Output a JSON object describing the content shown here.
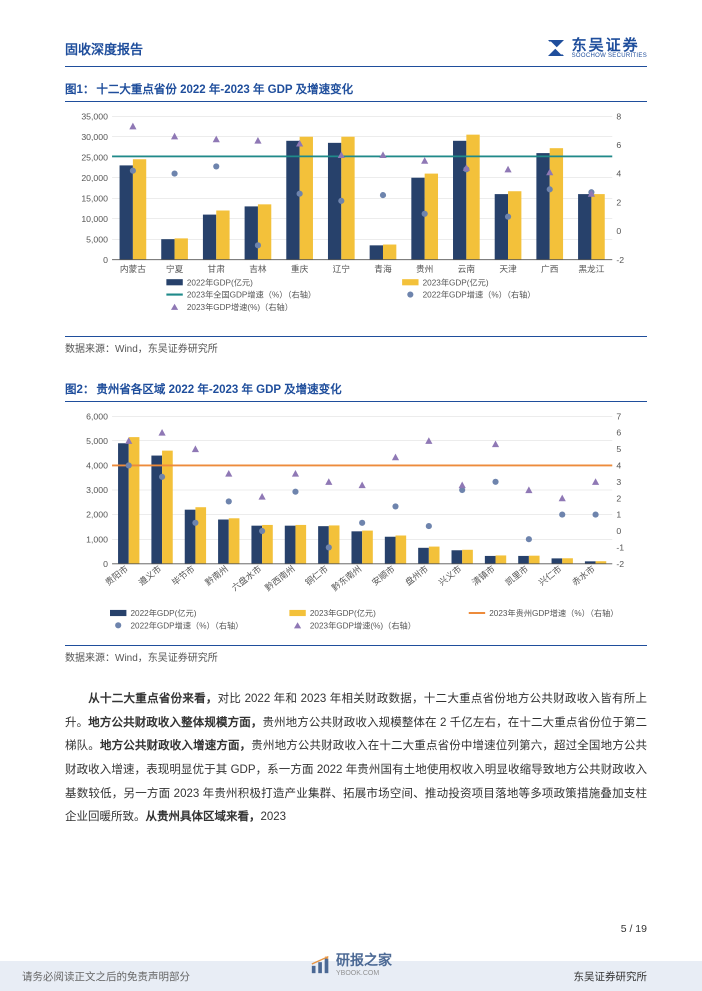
{
  "header": {
    "report_type": "固收深度报告",
    "logo_cn": "东吴证券",
    "logo_en": "SOOCHOW SECURITIES",
    "logo_color": "#1f4e9c"
  },
  "fig1": {
    "label": "图1：",
    "title": "十二大重点省份 2022 年-2023 年 GDP 及增速变化",
    "type": "bar+line+scatter",
    "categories": [
      "内蒙古",
      "宁夏",
      "甘肃",
      "吉林",
      "重庆",
      "辽宁",
      "青海",
      "贵州",
      "云南",
      "天津",
      "广西",
      "黑龙江"
    ],
    "series": {
      "gdp2022": {
        "label": "2022年GDP(亿元)",
        "color": "#27416b",
        "values": [
          23000,
          5000,
          11000,
          13000,
          29000,
          28500,
          3500,
          20000,
          29000,
          16000,
          26000,
          16000
        ]
      },
      "gdp2023": {
        "label": "2023年GDP(亿元)",
        "color": "#f3c13a",
        "values": [
          24500,
          5200,
          12000,
          13500,
          30000,
          30000,
          3700,
          21000,
          30500,
          16700,
          27200,
          16000
        ]
      },
      "nat_growth": {
        "label": "2023年全国GDP增速（%）（右轴）",
        "color": "#1f8a8a",
        "value": 5.2,
        "style": "line"
      },
      "growth2022": {
        "label": "2022年GDP增速（%）（右轴）",
        "color": "#6e84ad",
        "marker": "circle",
        "values": [
          4.2,
          4.0,
          4.5,
          -1.0,
          2.6,
          2.1,
          2.5,
          1.2,
          4.3,
          1.0,
          2.9,
          2.7
        ]
      },
      "growth2023": {
        "label": "2023年GDP增速(%)（右轴）",
        "color": "#8f78b5",
        "marker": "triangle",
        "values": [
          7.3,
          6.6,
          6.4,
          6.3,
          6.1,
          5.3,
          5.3,
          4.9,
          4.4,
          4.3,
          4.1,
          2.6
        ]
      }
    },
    "y_left": {
      "min": 0,
      "max": 35000,
      "step": 5000,
      "label": ""
    },
    "y_right": {
      "min": -2,
      "max": 8,
      "step": 2,
      "label": ""
    },
    "source": "数据来源：Wind，东吴证券研究所",
    "bar_width": 0.32,
    "grid_color": "#d9d9d9",
    "axis_color": "#555",
    "label_fontsize": 8.5
  },
  "fig2": {
    "label": "图2：",
    "title": "贵州省各区域 2022 年-2023 年 GDP 及增速变化",
    "type": "bar+line+scatter",
    "categories": [
      "贵阳市",
      "遵义市",
      "毕节市",
      "黔南州",
      "六盘水市",
      "黔西南州",
      "铜仁市",
      "黔东南州",
      "安顺市",
      "盘州市",
      "兴义市",
      "清镇市",
      "凯里市",
      "兴仁市",
      "赤水市"
    ],
    "series": {
      "gdp2022": {
        "label": "2022年GDP(亿元)",
        "color": "#27416b",
        "values": [
          4900,
          4400,
          2200,
          1800,
          1550,
          1550,
          1530,
          1320,
          1100,
          650,
          550,
          320,
          320,
          220,
          100
        ]
      },
      "gdp2023": {
        "label": "2023年GDP(亿元)",
        "color": "#f3c13a",
        "values": [
          5150,
          4600,
          2300,
          1850,
          1580,
          1580,
          1560,
          1350,
          1150,
          700,
          570,
          340,
          330,
          225,
          105
        ]
      },
      "gz_growth": {
        "label": "2023年贵州GDP增速（%）（右轴）",
        "color": "#ed8b3b",
        "value": 4.0,
        "style": "line"
      },
      "growth2022": {
        "label": "2022年GDP增速（%）（右轴）",
        "color": "#6e84ad",
        "marker": "circle",
        "values": [
          4.0,
          3.3,
          0.5,
          1.8,
          0.0,
          2.4,
          -1.0,
          0.5,
          1.5,
          0.3,
          2.5,
          3.0,
          -0.5,
          1.0,
          1.0
        ]
      },
      "growth2023": {
        "label": "2023年GDP增速(%)（右轴）",
        "color": "#8f78b5",
        "marker": "triangle",
        "values": [
          5.5,
          6.0,
          5.0,
          3.5,
          2.1,
          3.5,
          3.0,
          2.8,
          4.5,
          5.5,
          2.8,
          5.3,
          2.5,
          2.0,
          3.0
        ]
      }
    },
    "y_left": {
      "min": 0,
      "max": 6000,
      "step": 1000
    },
    "y_right": {
      "min": -2,
      "max": 7,
      "step": 1
    },
    "source": "数据来源：Wind，东吴证券研究所",
    "bar_width": 0.32,
    "grid_color": "#d9d9d9",
    "axis_color": "#555",
    "label_fontsize": 8.5
  },
  "body": {
    "p1_lead": "从十二大重点省份来看，",
    "p1_a": "对比 2022 年和 2023 年相关财政数据，十二大重点省份地方公共财政收入皆有所上升。",
    "p1_b_bold": "地方公共财政收入整体规模方面，",
    "p1_b": "贵州地方公共财政收入规模整体在 2 千亿左右，在十二大重点省份位于第二梯队。",
    "p1_c_bold": "地方公共财政收入增速方面，",
    "p1_c": "贵州地方公共财政收入在十二大重点省份中增速位列第六，超过全国地方公共财政收入增速，表现明显优于其 GDP，系一方面 2022 年贵州国有土地使用权收入明显收缩导致地方公共财政收入基数较低，另一方面 2023 年贵州积极打造产业集群、拓展市场空间、推动投资项目落地等多项政策措施叠加支柱企业回暖所致。",
    "p1_d_bold": "从贵州具体区域来看，",
    "p1_d": "2023"
  },
  "footer": {
    "page": "5 / 19",
    "left": "请务必阅读正文之后的免责声明部分",
    "right": "东吴证券研究所",
    "watermark": "研报之家",
    "watermark_sub": "YBOOK.COM"
  }
}
